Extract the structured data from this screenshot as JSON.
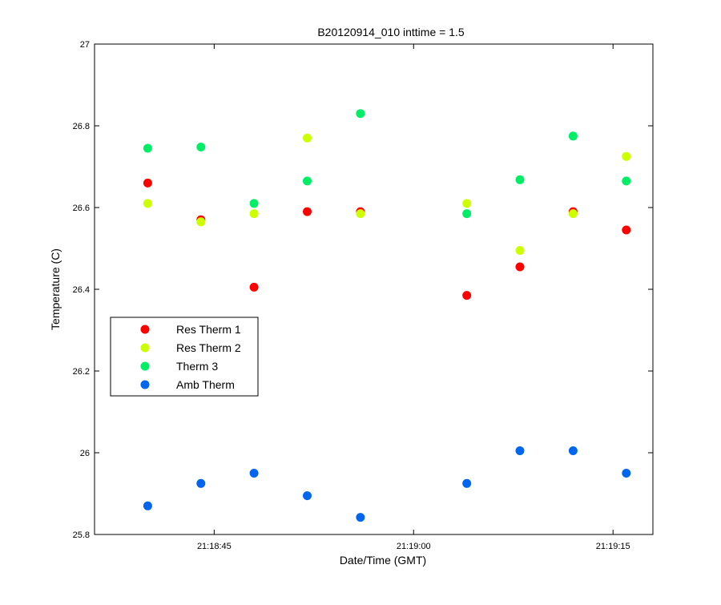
{
  "chart_data": {
    "type": "scatter",
    "title": "B20120914_010 inttime = 1.5",
    "xlabel": "Date/Time (GMT)",
    "ylabel": "Temperature (C)",
    "x_unit": "time (GMT)",
    "xlim": [
      "21:18:36",
      "21:19:18"
    ],
    "ylim": [
      25.8,
      27
    ],
    "x_ticks": [
      "21:18:45",
      "21:19:00",
      "21:19:15"
    ],
    "y_ticks": [
      "25.8",
      "26",
      "26.2",
      "26.4",
      "26.6",
      "26.8",
      "27"
    ],
    "grid": false,
    "legend_position": "left, lower-middle",
    "x": [
      "21:18:40",
      "21:18:44",
      "21:18:48",
      "21:18:52",
      "21:18:56",
      "21:19:00",
      "21:19:04",
      "21:19:08",
      "21:19:12",
      "21:19:16"
    ],
    "series": [
      {
        "name": "Res Therm 1",
        "color": "#ff0000",
        "values": [
          26.66,
          26.57,
          26.405,
          26.59,
          26.59,
          null,
          26.385,
          26.455,
          26.59,
          26.545
        ]
      },
      {
        "name": "Res Therm 2",
        "color": "#ccff00",
        "values": [
          26.61,
          26.565,
          26.585,
          26.77,
          26.585,
          null,
          26.61,
          26.495,
          26.585,
          26.725
        ]
      },
      {
        "name": "Therm 3",
        "color": "#00ee66",
        "values": [
          26.745,
          26.748,
          26.61,
          26.665,
          26.83,
          null,
          26.585,
          26.668,
          26.775,
          26.665
        ]
      },
      {
        "name": "Amb Therm",
        "color": "#0066ee",
        "values": [
          25.87,
          25.925,
          25.95,
          25.895,
          25.842,
          null,
          25.925,
          26.005,
          26.005,
          25.95
        ]
      }
    ]
  }
}
